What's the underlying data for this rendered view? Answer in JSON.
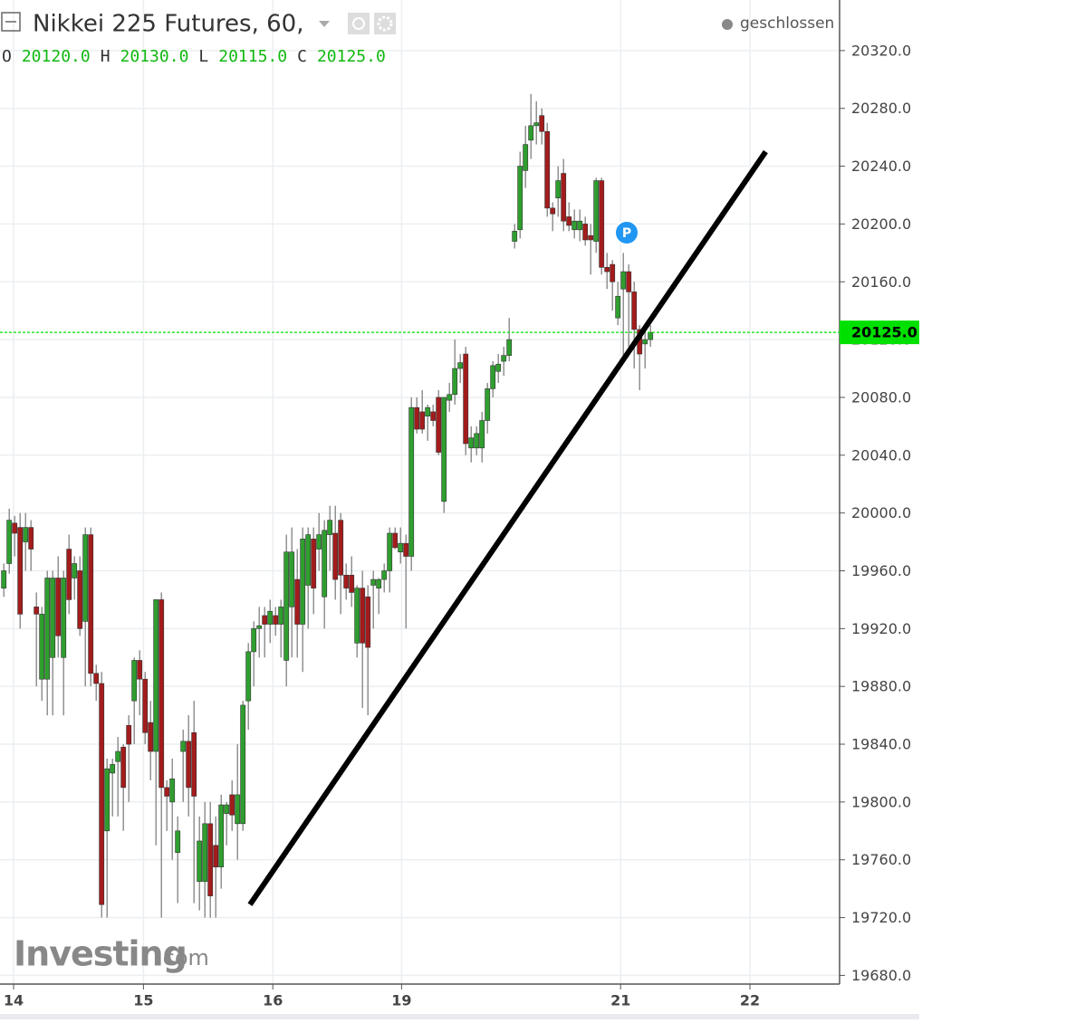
{
  "chart_data": {
    "type": "candlestick",
    "title": "Nikkei 225 Futures, 60,",
    "status": "geschlossen",
    "ohlc": [
      {
        "key": "O",
        "value": "20120.0"
      },
      {
        "key": "H",
        "value": "20130.0"
      },
      {
        "key": "L",
        "value": "20115.0"
      },
      {
        "key": "C",
        "value": "20125.0"
      }
    ],
    "up_color": "#2f9e2f",
    "down_color": "#a31c1c",
    "x": [
      0,
      1,
      2,
      3,
      4,
      5,
      6,
      7,
      8,
      9,
      10,
      11,
      12,
      13,
      14,
      15,
      16,
      17,
      18,
      19,
      20,
      21,
      22,
      23,
      24,
      25,
      26,
      27,
      28,
      29,
      30,
      31,
      32,
      33,
      34,
      35,
      36,
      37,
      38,
      39,
      40,
      41,
      42,
      43,
      44,
      45,
      46,
      47,
      48,
      49,
      50,
      51,
      52,
      53,
      54,
      55,
      56,
      57,
      58,
      59,
      60,
      61,
      62,
      63,
      64,
      65,
      66,
      67,
      68,
      69,
      70,
      71,
      72,
      73,
      74,
      75,
      76,
      77,
      78,
      79,
      80,
      81,
      82,
      83,
      84,
      85,
      86,
      87,
      88,
      89,
      90,
      91,
      92,
      93,
      94,
      95,
      96,
      97,
      98,
      99,
      100,
      101,
      102,
      103,
      104,
      105,
      106,
      107,
      108,
      109,
      110,
      111,
      112,
      113,
      114,
      115,
      116,
      117,
      118,
      119
    ],
    "open": [
      19948,
      19965,
      19993,
      19990,
      19980,
      19990,
      19935,
      19885,
      19885,
      19900,
      19955,
      19900,
      19975,
      19955,
      19960,
      19925,
      19985,
      19889,
      19882,
      19780,
      19820,
      19828,
      19838,
      19853,
      19870,
      19898,
      19885,
      19855,
      19835,
      19940,
      19810,
      19800,
      19765,
      19835,
      19842,
      19848,
      19745,
      19745,
      19785,
      19770,
      19755,
      19792,
      19805,
      19785,
      19785,
      19870,
      19904,
      19920,
      19929,
      19923,
      19929,
      19923,
      19898,
      19935,
      19954,
      19923,
      19950,
      19982,
      19975,
      19942,
      19985,
      19986,
      19995,
      19957,
      19957,
      19910,
      19948,
      19942,
      19950,
      19948,
      19954,
      19960,
      19986,
      19973,
      19979,
      19970,
      20073,
      20070,
      20067,
      20070,
      20080,
      20008,
      20078,
      20082,
      20100,
      20110,
      20045,
      20045,
      20045,
      20064,
      20086,
      20098,
      20105,
      20109,
      20188,
      20196,
      20237,
      20258,
      20268,
      20275,
      20264,
      20211,
      20218,
      20235,
      20205,
      20196,
      20196,
      20200,
      20192,
      20188,
      20230,
      20170,
      20172,
      20135,
      20155,
      20167,
      20153,
      20127,
      20117,
      20120
    ],
    "high": [
      19965,
      20003,
      19998,
      20000,
      20000,
      19995,
      19945,
      19935,
      19960,
      19960,
      19970,
      19960,
      19985,
      19970,
      19970,
      19990,
      19990,
      19895,
      19890,
      19830,
      19830,
      19845,
      19840,
      19860,
      19900,
      19905,
      19890,
      19870,
      19940,
      19945,
      19815,
      19830,
      19790,
      19850,
      19860,
      19870,
      19790,
      19800,
      19800,
      19790,
      19805,
      19800,
      19815,
      19840,
      19870,
      19910,
      19925,
      19935,
      19935,
      19940,
      19935,
      19940,
      19985,
      19990,
      19975,
      19990,
      19990,
      19990,
      20000,
      19995,
      20005,
      20005,
      20000,
      19965,
      19970,
      19950,
      19960,
      19950,
      19960,
      19955,
      19965,
      19990,
      19990,
      19990,
      19985,
      20080,
      20080,
      20085,
      20075,
      20075,
      20085,
      20080,
      20090,
      20120,
      20110,
      20115,
      20060,
      20060,
      20070,
      20090,
      20105,
      20110,
      20115,
      20135,
      20200,
      20250,
      20268,
      20290,
      20285,
      20280,
      20270,
      20215,
      20240,
      20245,
      20215,
      20210,
      20210,
      20205,
      20200,
      20232,
      20232,
      20180,
      20175,
      20160,
      20180,
      20172,
      20160,
      20130,
      20125,
      20130
    ],
    "low": [
      19942,
      19958,
      19970,
      19920,
      19960,
      19960,
      19880,
      19870,
      19860,
      19860,
      19900,
      19860,
      19930,
      19940,
      19915,
      19880,
      19880,
      19870,
      19720,
      19720,
      19790,
      19790,
      19780,
      19800,
      19840,
      19860,
      19840,
      19815,
      19770,
      19720,
      19780,
      19760,
      19730,
      19800,
      19790,
      19730,
      19725,
      19720,
      19720,
      19720,
      19740,
      19770,
      19780,
      19760,
      19780,
      19850,
      19880,
      19900,
      19900,
      19910,
      19915,
      19900,
      19880,
      19900,
      19900,
      19890,
      19920,
      19930,
      19960,
      19920,
      19960,
      19940,
      19930,
      19940,
      19935,
      19900,
      19865,
      19860,
      19920,
      19930,
      19945,
      19945,
      19975,
      19965,
      19920,
      19960,
      20055,
      20055,
      20050,
      20060,
      20040,
      20000,
      20070,
      20075,
      20090,
      20040,
      20035,
      20040,
      20035,
      20055,
      20080,
      20090,
      20095,
      20105,
      20183,
      20190,
      20225,
      20245,
      20255,
      20255,
      20205,
      20195,
      20205,
      20195,
      20195,
      20190,
      20188,
      20185,
      20165,
      20180,
      20165,
      20155,
      20140,
      20130,
      20105,
      20115,
      20100,
      20085,
      20100,
      20115
    ],
    "close": [
      19960,
      19995,
      19986,
      19930,
      19990,
      19975,
      19930,
      19930,
      19955,
      19955,
      19915,
      19955,
      19940,
      19965,
      19920,
      19985,
      19889,
      19882,
      19729,
      19823,
      19826,
      19835,
      19810,
      19840,
      19898,
      19885,
      19848,
      19835,
      19940,
      19810,
      19804,
      19816,
      19780,
      19842,
      19810,
      19804,
      19773,
      19785,
      19735,
      19755,
      19798,
      19798,
      19791,
      19805,
      19867,
      19904,
      19920,
      19922,
      19923,
      19932,
      19923,
      19935,
      19973,
      19973,
      19923,
      19982,
      19985,
      19948,
      19985,
      19988,
      19995,
      19954,
      19957,
      19948,
      19945,
      19948,
      19910,
      19907,
      19954,
      19954,
      19960,
      19986,
      19976,
      19979,
      19970,
      20073,
      20058,
      20058,
      20073,
      20064,
      20042,
      20080,
      20082,
      20100,
      20104,
      20048,
      20052,
      20055,
      20064,
      20086,
      20102,
      20103,
      20109,
      20120,
      20195,
      20240,
      20255,
      20268,
      20270,
      20264,
      20211,
      20207,
      20230,
      20202,
      20199,
      20202,
      20202,
      20189,
      20189,
      20230,
      20170,
      20167,
      20160,
      20150,
      20167,
      20153,
      20127,
      20110,
      20120,
      20125
    ],
    "xlim": [
      -0.7,
      153.8
    ],
    "xticks": [
      {
        "value": 1.8,
        "label": "14"
      },
      {
        "value": 25.7,
        "label": "15"
      },
      {
        "value": 49.5,
        "label": "16"
      },
      {
        "value": 73.2,
        "label": "19"
      },
      {
        "value": 113.5,
        "label": "21"
      },
      {
        "value": 137.3,
        "label": "22"
      }
    ],
    "ylim": [
      19674,
      20355
    ],
    "yticks": [
      {
        "value": 19680,
        "label": "19680.0"
      },
      {
        "value": 19720,
        "label": "19720.0"
      },
      {
        "value": 19760,
        "label": "19760.0"
      },
      {
        "value": 19800,
        "label": "19800.0"
      },
      {
        "value": 19840,
        "label": "19840.0"
      },
      {
        "value": 19880,
        "label": "19880.0"
      },
      {
        "value": 19920,
        "label": "19920.0"
      },
      {
        "value": 19960,
        "label": "19960.0"
      },
      {
        "value": 20000,
        "label": "20000.0"
      },
      {
        "value": 20040,
        "label": "20040.0"
      },
      {
        "value": 20080,
        "label": "20080.0"
      },
      {
        "value": 20120,
        "label": "20120.0"
      },
      {
        "value": 20160,
        "label": "20160.0"
      },
      {
        "value": 20200,
        "label": "20200.0"
      },
      {
        "value": 20240,
        "label": "20240.0"
      },
      {
        "value": 20280,
        "label": "20280.0"
      },
      {
        "value": 20320,
        "label": "20320.0"
      }
    ],
    "grid": true,
    "last_price": {
      "value": 20125,
      "label": "20125.0",
      "color": "#00e000"
    },
    "trend_line": {
      "x": [
        45.3,
        140.2
      ],
      "y": [
        19729,
        20250
      ],
      "color": "#000000"
    },
    "marker_label": "P",
    "watermark": "Investing",
    "watermark_suffix": ".com"
  }
}
